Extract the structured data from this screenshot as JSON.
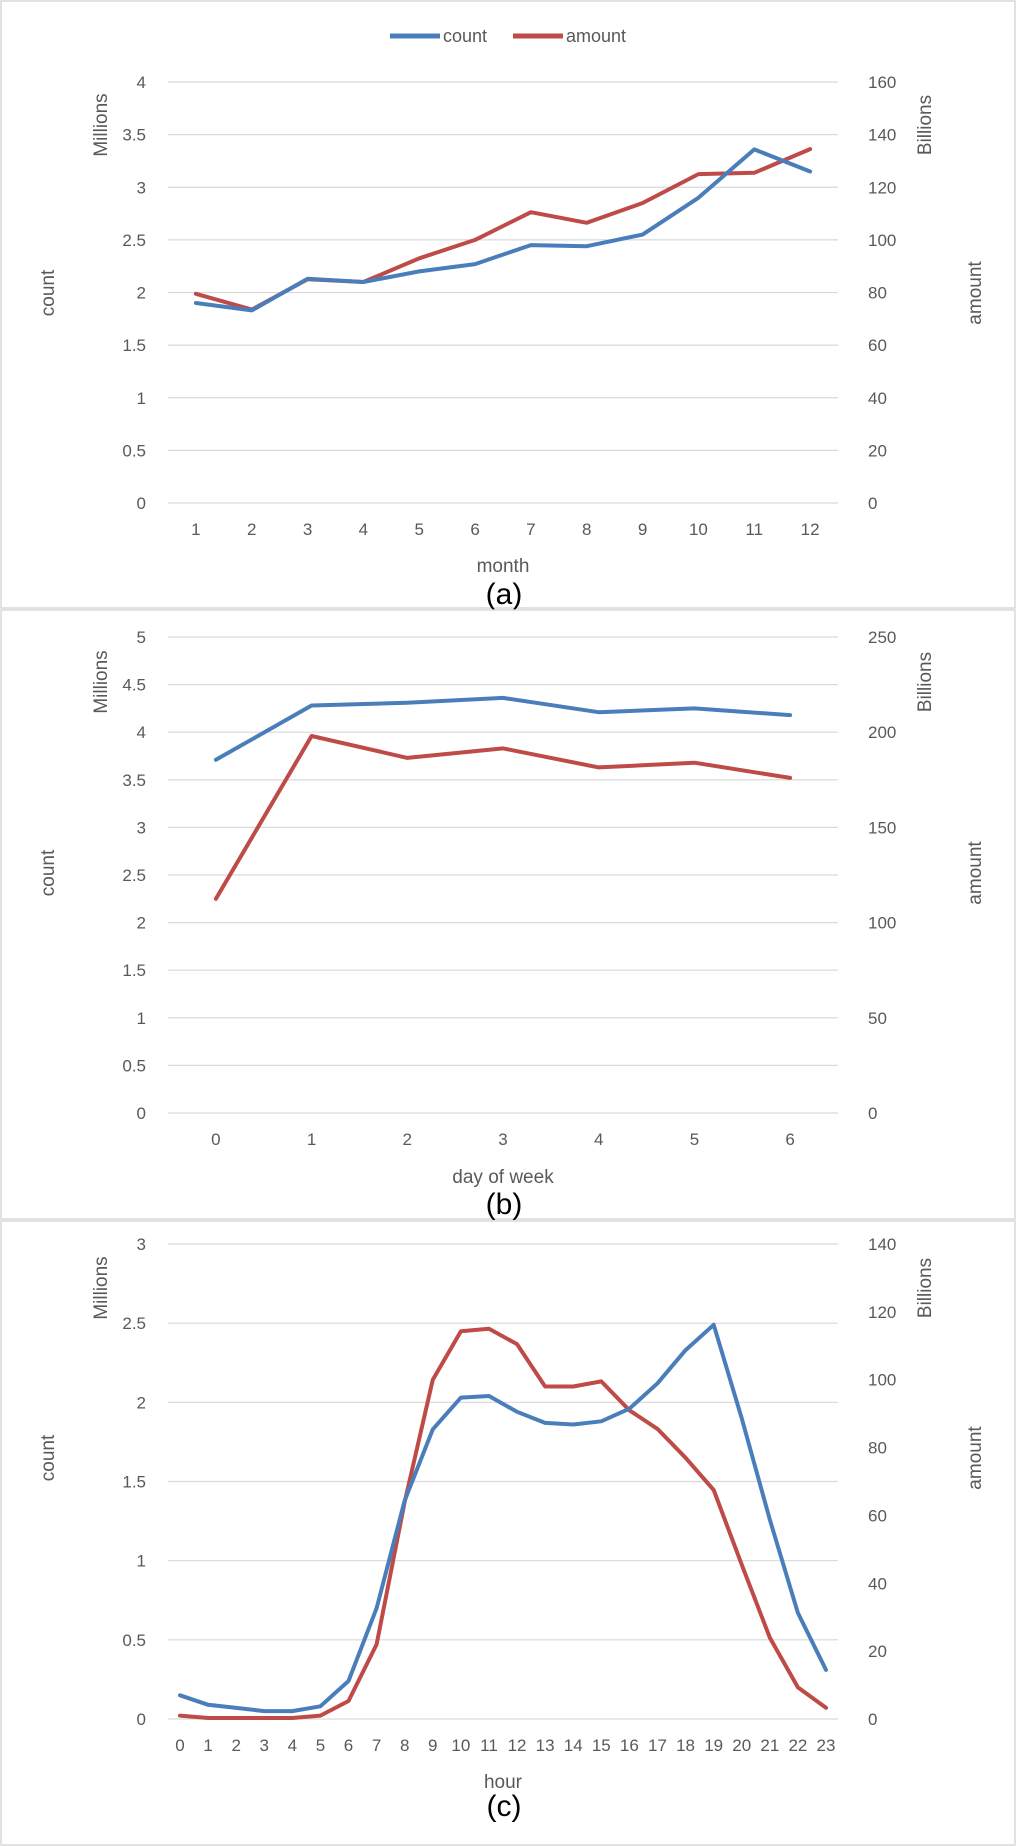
{
  "legend": {
    "count_label": "count",
    "amount_label": "amount"
  },
  "colors": {
    "count": "#4a7ebb",
    "amount": "#be4b48",
    "grid": "#d9d9d9",
    "text": "#595959"
  },
  "chart_data": [
    {
      "type": "line",
      "caption": "(a)",
      "xlabel": "month",
      "ylabel_left": "count",
      "ylabel_right": "amount",
      "left_unit": "Millions",
      "right_unit": "Billions",
      "x": [
        1,
        2,
        3,
        4,
        5,
        6,
        7,
        8,
        9,
        10,
        11,
        12
      ],
      "ylim_left": [
        0,
        4
      ],
      "yticks_left": [
        0,
        0.5,
        1,
        1.5,
        2,
        2.5,
        3,
        3.5,
        4
      ],
      "ylim_right": [
        0,
        160
      ],
      "yticks_right": [
        0,
        20,
        40,
        60,
        80,
        100,
        120,
        140,
        160
      ],
      "grid": true,
      "legend": "top-center",
      "series": [
        {
          "name": "count",
          "axis": "left",
          "values": [
            1.9,
            1.83,
            2.13,
            2.1,
            2.2,
            2.27,
            2.45,
            2.44,
            2.55,
            2.9,
            3.36,
            3.15
          ]
        },
        {
          "name": "amount",
          "axis": "right",
          "values": [
            79.5,
            73.5,
            85,
            84,
            93,
            100,
            110.5,
            106.5,
            114,
            125,
            125.5,
            134.5
          ]
        }
      ]
    },
    {
      "type": "line",
      "caption": "(b)",
      "xlabel": "day of week",
      "ylabel_left": "count",
      "ylabel_right": "amount",
      "left_unit": "Millions",
      "right_unit": "Billions",
      "x": [
        0,
        1,
        2,
        3,
        4,
        5,
        6
      ],
      "ylim_left": [
        0,
        5
      ],
      "yticks_left": [
        0,
        0.5,
        1,
        1.5,
        2,
        2.5,
        3,
        3.5,
        4,
        4.5,
        5
      ],
      "ylim_right": [
        0,
        250
      ],
      "yticks_right": [
        0,
        50,
        100,
        150,
        200,
        250
      ],
      "grid": true,
      "series": [
        {
          "name": "count",
          "axis": "left",
          "values": [
            3.71,
            4.28,
            4.31,
            4.36,
            4.21,
            4.25,
            4.18
          ]
        },
        {
          "name": "amount",
          "axis": "right",
          "values": [
            112.5,
            198,
            186.5,
            191.5,
            181.5,
            184,
            176
          ]
        }
      ]
    },
    {
      "type": "line",
      "caption": "(c)",
      "xlabel": "hour",
      "ylabel_left": "count",
      "ylabel_right": "amount",
      "left_unit": "Millions",
      "right_unit": "Billions",
      "x": [
        0,
        1,
        2,
        3,
        4,
        5,
        6,
        7,
        8,
        9,
        10,
        11,
        12,
        13,
        14,
        15,
        16,
        17,
        18,
        19,
        20,
        21,
        22,
        23
      ],
      "ylim_left": [
        0,
        3
      ],
      "yticks_left": [
        0,
        0.5,
        1,
        1.5,
        2,
        2.5,
        3
      ],
      "ylim_right": [
        0,
        140
      ],
      "yticks_right": [
        0,
        20,
        40,
        60,
        80,
        100,
        120,
        140
      ],
      "grid": true,
      "series": [
        {
          "name": "count",
          "axis": "left",
          "values": [
            0.15,
            0.09,
            0.07,
            0.05,
            0.05,
            0.08,
            0.24,
            0.7,
            1.38,
            1.83,
            2.03,
            2.04,
            1.94,
            1.87,
            1.86,
            1.88,
            1.96,
            2.12,
            2.33,
            2.49,
            1.9,
            1.26,
            0.67,
            0.31
          ]
        },
        {
          "name": "amount",
          "axis": "right",
          "values": [
            1,
            0.3,
            0.3,
            0.3,
            0.3,
            1,
            5.3,
            22,
            64,
            100,
            114.3,
            115,
            110.5,
            98,
            98,
            99.5,
            91,
            85.5,
            77,
            67.5,
            45.5,
            24,
            9.3,
            3.3
          ]
        }
      ]
    }
  ]
}
